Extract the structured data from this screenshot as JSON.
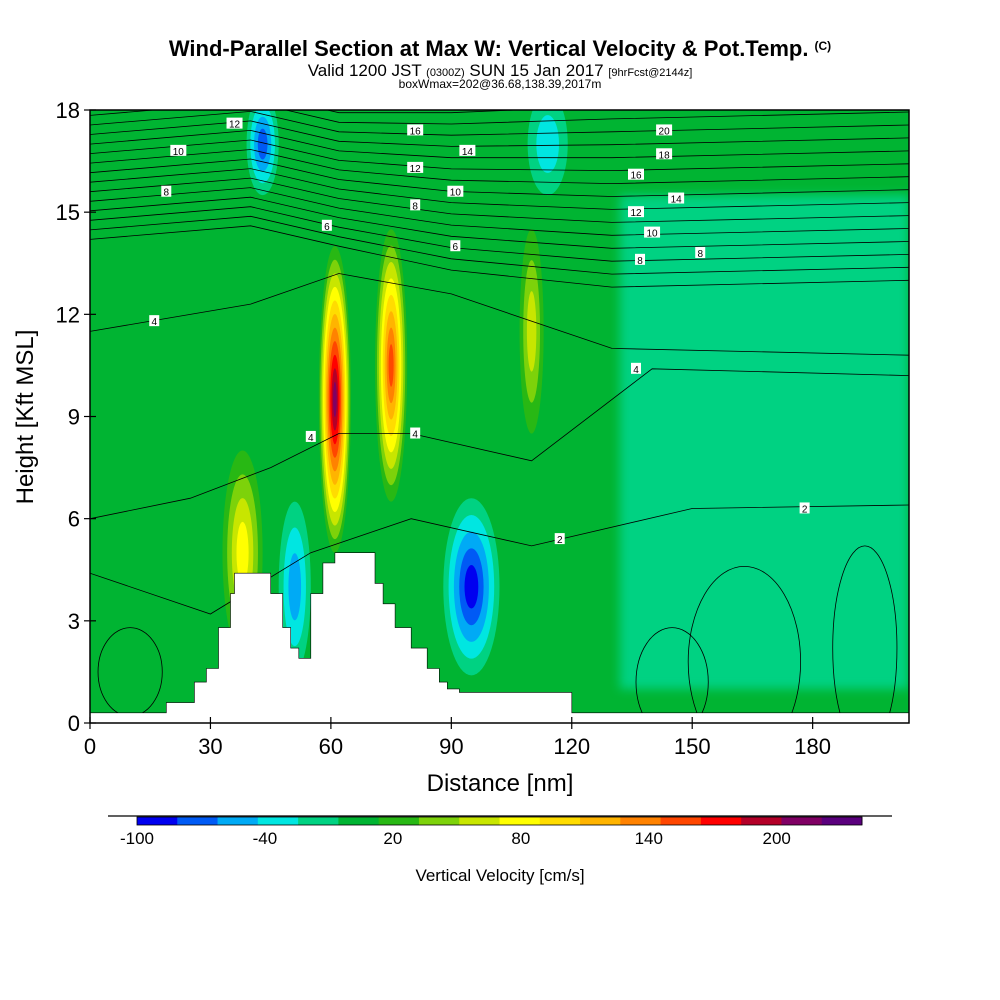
{
  "header": {
    "title": "Wind-Parallel Section at Max W: Vertical Velocity & Pot.Temp.",
    "copyright": "(C)",
    "sub_valid": "Valid 1200 JST",
    "sub_zulu": "(0300Z)",
    "sub_date": "SUN 15 Jan 2017",
    "sub_fcst": "[9hrFcst@2144z]",
    "sub2": "boxWmax=202@36.68,138.39,2017m"
  },
  "chart_data": {
    "type": "heatmap",
    "title": "Wind-Parallel Section at Max W: Vertical Velocity & Pot.Temp.",
    "xlabel": "Distance [nm]",
    "ylabel": "Height [Kft MSL]",
    "xlim": [
      0,
      204
    ],
    "ylim": [
      0,
      18
    ],
    "x_ticks": [
      0,
      30,
      60,
      90,
      120,
      150,
      180
    ],
    "y_ticks": [
      0,
      3,
      6,
      9,
      12,
      15,
      18
    ],
    "colorbar": {
      "label": "Vertical Velocity [cm/s]",
      "levels": [
        -100,
        -80,
        -60,
        -40,
        -20,
        0,
        20,
        40,
        60,
        80,
        100,
        120,
        140,
        160,
        180,
        200,
        220,
        240
      ],
      "tick_labels": [
        "-100",
        "-40",
        "20",
        "80",
        "140",
        "200"
      ],
      "tick_values": [
        -100,
        -40,
        20,
        80,
        140,
        200
      ],
      "colors": [
        "#0000f0",
        "#005af5",
        "#00aaf5",
        "#00e6e1",
        "#00d282",
        "#00b432",
        "#28b814",
        "#7dd20a",
        "#c8e600",
        "#ffff00",
        "#ffdc00",
        "#ffb400",
        "#ff8200",
        "#ff4600",
        "#ff0000",
        "#b40028",
        "#800064",
        "#5a007d"
      ]
    },
    "vertical_velocity_extremes": [
      {
        "feature": "updraft",
        "x": 61,
        "y": 9.5,
        "value": 230
      },
      {
        "feature": "updraft",
        "x": 75,
        "y": 10.5,
        "value": 180
      },
      {
        "feature": "updraft",
        "x": 38,
        "y": 5,
        "value": 90
      },
      {
        "feature": "updraft",
        "x": 110,
        "y": 11.5,
        "value": 70
      },
      {
        "feature": "downdraft",
        "x": 95,
        "y": 4,
        "value": -90
      },
      {
        "feature": "downdraft",
        "x": 43,
        "y": 17,
        "value": -70
      },
      {
        "feature": "downdraft",
        "x": 51,
        "y": 4,
        "value": -60
      },
      {
        "feature": "downdraft",
        "x": 114,
        "y": 17,
        "value": -40
      }
    ],
    "contours": {
      "variable": "Potential temperature perturbation",
      "labels": [
        {
          "text": "12",
          "x": 36,
          "y": 17.6
        },
        {
          "text": "10",
          "x": 22,
          "y": 16.8
        },
        {
          "text": "8",
          "x": 19,
          "y": 15.6
        },
        {
          "text": "16",
          "x": 81,
          "y": 17.4
        },
        {
          "text": "14",
          "x": 94,
          "y": 16.8
        },
        {
          "text": "12",
          "x": 81,
          "y": 16.3
        },
        {
          "text": "10",
          "x": 91,
          "y": 15.6
        },
        {
          "text": "8",
          "x": 81,
          "y": 15.2
        },
        {
          "text": "6",
          "x": 59,
          "y": 14.6
        },
        {
          "text": "6",
          "x": 91,
          "y": 14.0
        },
        {
          "text": "20",
          "x": 143,
          "y": 17.4
        },
        {
          "text": "18",
          "x": 143,
          "y": 16.7
        },
        {
          "text": "16",
          "x": 136,
          "y": 16.1
        },
        {
          "text": "14",
          "x": 146,
          "y": 15.4
        },
        {
          "text": "12",
          "x": 136,
          "y": 15.0
        },
        {
          "text": "10",
          "x": 140,
          "y": 14.4
        },
        {
          "text": "8",
          "x": 137,
          "y": 13.6
        },
        {
          "text": "8",
          "x": 152,
          "y": 13.8
        },
        {
          "text": "4",
          "x": 16,
          "y": 11.8
        },
        {
          "text": "4",
          "x": 136,
          "y": 10.4
        },
        {
          "text": "4",
          "x": 55,
          "y": 8.4
        },
        {
          "text": "4",
          "x": 81,
          "y": 8.5
        },
        {
          "text": "2",
          "x": 117,
          "y": 5.4
        },
        {
          "text": "2",
          "x": 178,
          "y": 6.3
        }
      ]
    },
    "terrain_profile": {
      "x": [
        0,
        19,
        19,
        26,
        26,
        29,
        29,
        32,
        32,
        35,
        35,
        36,
        36,
        39,
        39,
        45,
        45,
        48,
        48,
        50,
        50,
        52,
        52,
        55,
        55,
        58,
        58,
        61,
        61,
        64,
        64,
        71,
        71,
        73,
        73,
        76,
        76,
        80,
        80,
        84,
        84,
        87,
        87,
        89,
        89,
        92,
        92,
        95,
        95,
        120,
        120,
        123,
        123,
        127,
        127,
        204
      ],
      "y": [
        0.3,
        0.3,
        0.6,
        0.6,
        1.2,
        1.2,
        1.6,
        1.6,
        2.8,
        2.8,
        3.8,
        3.8,
        4.4,
        4.4,
        4.4,
        4.4,
        3.8,
        3.8,
        2.8,
        2.8,
        2.2,
        2.2,
        1.9,
        1.9,
        3.8,
        3.8,
        4.7,
        4.7,
        5.0,
        5.0,
        5.0,
        5.0,
        4.1,
        4.1,
        3.5,
        3.5,
        2.8,
        2.8,
        2.2,
        2.2,
        1.6,
        1.6,
        1.2,
        1.2,
        1.0,
        1.0,
        0.9,
        0.9,
        0.9,
        0.9,
        0.3,
        0.3,
        0.3,
        0.3,
        0.3,
        0.3
      ]
    }
  }
}
